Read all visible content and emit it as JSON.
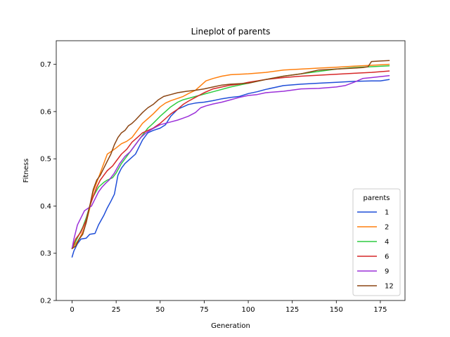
{
  "chart_data": {
    "type": "line",
    "title": "Lineplot of parents",
    "xlabel": "Generation",
    "ylabel": "Fitness",
    "xlim": [
      -9,
      189
    ],
    "ylim": [
      0.2,
      0.75
    ],
    "xticks": [
      0,
      25,
      50,
      75,
      100,
      125,
      150,
      175
    ],
    "yticks": [
      0.2,
      0.3,
      0.4,
      0.5,
      0.6,
      0.7
    ],
    "ytick_labels": [
      "0.2",
      "0.3",
      "0.4",
      "0.5",
      "0.6",
      "0.7"
    ],
    "grid": false,
    "legend": {
      "title": "parents",
      "position": "lower-right"
    },
    "series": [
      {
        "name": "1",
        "color": "#1f4ed8",
        "points": [
          [
            0,
            0.292
          ],
          [
            1,
            0.305
          ],
          [
            3,
            0.32
          ],
          [
            5,
            0.33
          ],
          [
            8,
            0.332
          ],
          [
            10,
            0.34
          ],
          [
            13,
            0.342
          ],
          [
            15,
            0.36
          ],
          [
            18,
            0.38
          ],
          [
            20,
            0.396
          ],
          [
            22,
            0.41
          ],
          [
            24,
            0.425
          ],
          [
            26,
            0.465
          ],
          [
            28,
            0.48
          ],
          [
            30,
            0.49
          ],
          [
            33,
            0.5
          ],
          [
            36,
            0.51
          ],
          [
            38,
            0.525
          ],
          [
            40,
            0.54
          ],
          [
            43,
            0.555
          ],
          [
            46,
            0.56
          ],
          [
            50,
            0.565
          ],
          [
            53,
            0.572
          ],
          [
            56,
            0.59
          ],
          [
            60,
            0.605
          ],
          [
            63,
            0.61
          ],
          [
            66,
            0.615
          ],
          [
            70,
            0.618
          ],
          [
            75,
            0.62
          ],
          [
            80,
            0.623
          ],
          [
            85,
            0.627
          ],
          [
            90,
            0.63
          ],
          [
            95,
            0.632
          ],
          [
            100,
            0.638
          ],
          [
            105,
            0.642
          ],
          [
            110,
            0.647
          ],
          [
            120,
            0.655
          ],
          [
            130,
            0.658
          ],
          [
            140,
            0.66
          ],
          [
            150,
            0.662
          ],
          [
            160,
            0.664
          ],
          [
            170,
            0.665
          ],
          [
            175,
            0.665
          ],
          [
            180,
            0.668
          ]
        ]
      },
      {
        "name": "2",
        "color": "#ff7f0e",
        "points": [
          [
            0,
            0.31
          ],
          [
            2,
            0.32
          ],
          [
            4,
            0.33
          ],
          [
            6,
            0.345
          ],
          [
            8,
            0.365
          ],
          [
            10,
            0.395
          ],
          [
            12,
            0.43
          ],
          [
            15,
            0.46
          ],
          [
            18,
            0.49
          ],
          [
            20,
            0.51
          ],
          [
            22,
            0.515
          ],
          [
            25,
            0.523
          ],
          [
            28,
            0.532
          ],
          [
            31,
            0.537
          ],
          [
            34,
            0.545
          ],
          [
            37,
            0.56
          ],
          [
            40,
            0.575
          ],
          [
            43,
            0.585
          ],
          [
            46,
            0.595
          ],
          [
            50,
            0.61
          ],
          [
            53,
            0.618
          ],
          [
            56,
            0.623
          ],
          [
            60,
            0.628
          ],
          [
            63,
            0.632
          ],
          [
            66,
            0.638
          ],
          [
            70,
            0.645
          ],
          [
            73,
            0.655
          ],
          [
            76,
            0.665
          ],
          [
            80,
            0.67
          ],
          [
            85,
            0.675
          ],
          [
            90,
            0.678
          ],
          [
            100,
            0.68
          ],
          [
            110,
            0.683
          ],
          [
            120,
            0.688
          ],
          [
            130,
            0.69
          ],
          [
            140,
            0.692
          ],
          [
            150,
            0.694
          ],
          [
            160,
            0.696
          ],
          [
            170,
            0.698
          ],
          [
            180,
            0.7
          ]
        ]
      },
      {
        "name": "4",
        "color": "#2ecc40",
        "points": [
          [
            0,
            0.31
          ],
          [
            2,
            0.325
          ],
          [
            4,
            0.34
          ],
          [
            6,
            0.355
          ],
          [
            8,
            0.375
          ],
          [
            10,
            0.4
          ],
          [
            12,
            0.42
          ],
          [
            15,
            0.44
          ],
          [
            18,
            0.45
          ],
          [
            20,
            0.455
          ],
          [
            23,
            0.46
          ],
          [
            25,
            0.47
          ],
          [
            28,
            0.49
          ],
          [
            31,
            0.505
          ],
          [
            34,
            0.52
          ],
          [
            37,
            0.535
          ],
          [
            40,
            0.55
          ],
          [
            43,
            0.565
          ],
          [
            46,
            0.575
          ],
          [
            50,
            0.59
          ],
          [
            53,
            0.6
          ],
          [
            56,
            0.61
          ],
          [
            60,
            0.62
          ],
          [
            63,
            0.625
          ],
          [
            66,
            0.628
          ],
          [
            70,
            0.632
          ],
          [
            75,
            0.637
          ],
          [
            80,
            0.642
          ],
          [
            85,
            0.647
          ],
          [
            90,
            0.652
          ],
          [
            95,
            0.656
          ],
          [
            100,
            0.66
          ],
          [
            110,
            0.668
          ],
          [
            120,
            0.675
          ],
          [
            130,
            0.68
          ],
          [
            140,
            0.685
          ],
          [
            150,
            0.69
          ],
          [
            160,
            0.693
          ],
          [
            170,
            0.695
          ],
          [
            180,
            0.697
          ]
        ]
      },
      {
        "name": "6",
        "color": "#d62728",
        "points": [
          [
            0,
            0.31
          ],
          [
            2,
            0.33
          ],
          [
            5,
            0.345
          ],
          [
            8,
            0.37
          ],
          [
            10,
            0.4
          ],
          [
            12,
            0.42
          ],
          [
            14,
            0.44
          ],
          [
            16,
            0.455
          ],
          [
            18,
            0.465
          ],
          [
            20,
            0.475
          ],
          [
            23,
            0.485
          ],
          [
            25,
            0.495
          ],
          [
            28,
            0.51
          ],
          [
            31,
            0.52
          ],
          [
            34,
            0.535
          ],
          [
            37,
            0.545
          ],
          [
            40,
            0.555
          ],
          [
            43,
            0.56
          ],
          [
            46,
            0.565
          ],
          [
            50,
            0.575
          ],
          [
            53,
            0.585
          ],
          [
            56,
            0.595
          ],
          [
            60,
            0.605
          ],
          [
            63,
            0.615
          ],
          [
            66,
            0.622
          ],
          [
            70,
            0.63
          ],
          [
            75,
            0.64
          ],
          [
            80,
            0.648
          ],
          [
            85,
            0.652
          ],
          [
            90,
            0.656
          ],
          [
            95,
            0.658
          ],
          [
            100,
            0.662
          ],
          [
            110,
            0.668
          ],
          [
            120,
            0.672
          ],
          [
            130,
            0.675
          ],
          [
            140,
            0.677
          ],
          [
            150,
            0.679
          ],
          [
            160,
            0.681
          ],
          [
            170,
            0.683
          ],
          [
            180,
            0.686
          ]
        ]
      },
      {
        "name": "9",
        "color": "#9b30d9",
        "points": [
          [
            0,
            0.31
          ],
          [
            1,
            0.33
          ],
          [
            3,
            0.36
          ],
          [
            5,
            0.375
          ],
          [
            7,
            0.39
          ],
          [
            9,
            0.395
          ],
          [
            11,
            0.4
          ],
          [
            13,
            0.415
          ],
          [
            15,
            0.43
          ],
          [
            17,
            0.44
          ],
          [
            19,
            0.448
          ],
          [
            21,
            0.455
          ],
          [
            24,
            0.47
          ],
          [
            27,
            0.49
          ],
          [
            30,
            0.505
          ],
          [
            33,
            0.515
          ],
          [
            36,
            0.53
          ],
          [
            39,
            0.545
          ],
          [
            42,
            0.555
          ],
          [
            45,
            0.562
          ],
          [
            48,
            0.568
          ],
          [
            50,
            0.572
          ],
          [
            53,
            0.575
          ],
          [
            56,
            0.578
          ],
          [
            60,
            0.582
          ],
          [
            63,
            0.586
          ],
          [
            66,
            0.59
          ],
          [
            70,
            0.598
          ],
          [
            73,
            0.608
          ],
          [
            76,
            0.612
          ],
          [
            80,
            0.616
          ],
          [
            85,
            0.62
          ],
          [
            90,
            0.625
          ],
          [
            95,
            0.63
          ],
          [
            100,
            0.634
          ],
          [
            105,
            0.636
          ],
          [
            110,
            0.64
          ],
          [
            120,
            0.643
          ],
          [
            130,
            0.648
          ],
          [
            140,
            0.649
          ],
          [
            150,
            0.652
          ],
          [
            155,
            0.655
          ],
          [
            160,
            0.662
          ],
          [
            165,
            0.67
          ],
          [
            170,
            0.672
          ],
          [
            175,
            0.674
          ],
          [
            180,
            0.676
          ]
        ]
      },
      {
        "name": "12",
        "color": "#8b4513",
        "points": [
          [
            0,
            0.31
          ],
          [
            2,
            0.315
          ],
          [
            4,
            0.33
          ],
          [
            6,
            0.34
          ],
          [
            8,
            0.365
          ],
          [
            10,
            0.4
          ],
          [
            12,
            0.435
          ],
          [
            14,
            0.455
          ],
          [
            16,
            0.465
          ],
          [
            18,
            0.48
          ],
          [
            20,
            0.495
          ],
          [
            22,
            0.51
          ],
          [
            24,
            0.53
          ],
          [
            26,
            0.545
          ],
          [
            28,
            0.555
          ],
          [
            30,
            0.56
          ],
          [
            32,
            0.57
          ],
          [
            34,
            0.575
          ],
          [
            36,
            0.582
          ],
          [
            38,
            0.59
          ],
          [
            40,
            0.598
          ],
          [
            43,
            0.608
          ],
          [
            46,
            0.615
          ],
          [
            49,
            0.625
          ],
          [
            52,
            0.632
          ],
          [
            56,
            0.636
          ],
          [
            60,
            0.64
          ],
          [
            65,
            0.643
          ],
          [
            70,
            0.645
          ],
          [
            75,
            0.648
          ],
          [
            80,
            0.652
          ],
          [
            85,
            0.656
          ],
          [
            90,
            0.658
          ],
          [
            100,
            0.66
          ],
          [
            110,
            0.668
          ],
          [
            120,
            0.675
          ],
          [
            130,
            0.68
          ],
          [
            140,
            0.688
          ],
          [
            150,
            0.69
          ],
          [
            160,
            0.692
          ],
          [
            165,
            0.693
          ],
          [
            168,
            0.695
          ],
          [
            170,
            0.706
          ],
          [
            175,
            0.707
          ],
          [
            180,
            0.708
          ]
        ]
      }
    ]
  }
}
